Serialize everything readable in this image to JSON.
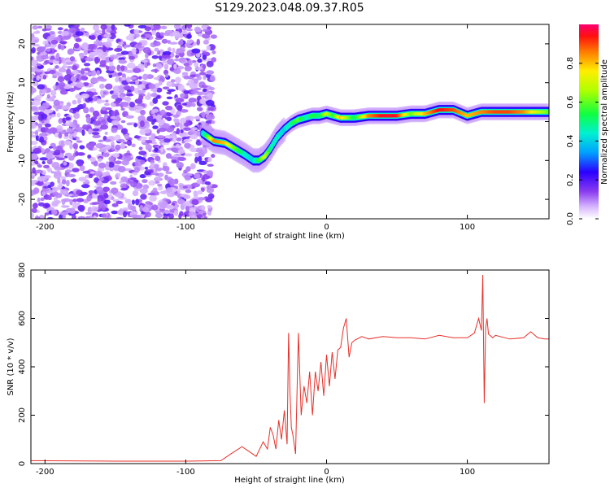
{
  "title": "S129.2023.048.09.37.R05",
  "chart_data": [
    {
      "type": "heatmap",
      "xlabel": "Height of straight line (km)",
      "ylabel": "Frequency (Hz)",
      "xlim": [
        -210,
        158
      ],
      "ylim": [
        -25,
        25
      ],
      "xticks": [
        -200,
        -100,
        0,
        100
      ],
      "yticks": [
        -20,
        -10,
        0,
        10,
        20
      ],
      "colorbar": {
        "label": "Normalized spectral amplitude",
        "range": [
          0,
          1
        ],
        "ticks": [
          "0.0",
          "0.2",
          "0.4",
          "0.6",
          "0.8"
        ],
        "tick_values": [
          0,
          0.2,
          0.4,
          0.6,
          0.8
        ]
      },
      "noise_region": {
        "x": [
          -210,
          -80
        ],
        "y": [
          -25,
          25
        ]
      },
      "ridge": {
        "x": [
          -88,
          -80,
          -72,
          -65,
          -58,
          -52,
          -48,
          -44,
          -40,
          -35,
          -30,
          -25,
          -20,
          -15,
          -10,
          -5,
          0,
          5,
          10,
          20,
          30,
          40,
          50,
          60,
          70,
          80,
          90,
          100,
          110,
          120,
          130,
          140,
          150,
          158
        ],
        "y": [
          -3,
          -5,
          -5.5,
          -7,
          -8.5,
          -10,
          -10,
          -9,
          -7,
          -4,
          -2,
          -0.5,
          0.5,
          1,
          1.5,
          1.5,
          2,
          1.5,
          1,
          1,
          1.5,
          1.5,
          1.5,
          2,
          2,
          3,
          3,
          1.5,
          2.5,
          2.5,
          2.5,
          2.5,
          2.5,
          2.5
        ],
        "amp": [
          0.4,
          0.85,
          0.8,
          0.6,
          0.45,
          0.4,
          0.55,
          0.7,
          0.5,
          0.45,
          0.4,
          0.5,
          0.6,
          0.45,
          0.55,
          0.5,
          0.7,
          0.55,
          0.8,
          0.5,
          0.85,
          0.95,
          0.95,
          0.6,
          0.8,
          0.95,
          0.9,
          0.8,
          0.85,
          0.9,
          0.9,
          0.85,
          0.7,
          0.6
        ]
      }
    },
    {
      "type": "line",
      "xlabel": "Height of straight line (km)",
      "ylabel": "SNR (10 * v/v)",
      "xlim": [
        -210,
        158
      ],
      "ylim": [
        0,
        800
      ],
      "xticks": [
        -200,
        -100,
        0,
        100
      ],
      "yticks": [
        0,
        200,
        400,
        600,
        800
      ],
      "series": [
        {
          "color": "#e8302a",
          "x": [
            -210,
            -150,
            -100,
            -75,
            -68,
            -60,
            -50,
            -45,
            -42,
            -40,
            -38,
            -36,
            -34,
            -32,
            -30,
            -28,
            -27,
            -26,
            -25,
            -24,
            -22,
            -20,
            -18,
            -16,
            -14,
            -12,
            -10,
            -8,
            -6,
            -4,
            -2,
            0,
            2,
            4,
            6,
            8,
            10,
            12,
            14,
            16,
            18,
            20,
            25,
            30,
            40,
            50,
            60,
            70,
            80,
            90,
            100,
            105,
            108,
            110,
            111,
            112,
            113,
            114,
            115,
            118,
            120,
            130,
            140,
            145,
            150,
            155,
            158
          ],
          "y": [
            12,
            10,
            10,
            12,
            40,
            70,
            30,
            90,
            60,
            150,
            120,
            60,
            180,
            100,
            220,
            80,
            540,
            300,
            150,
            120,
            40,
            540,
            200,
            320,
            250,
            380,
            200,
            380,
            300,
            420,
            280,
            450,
            320,
            460,
            350,
            470,
            480,
            560,
            600,
            440,
            500,
            510,
            525,
            515,
            525,
            520,
            520,
            515,
            530,
            520,
            520,
            540,
            600,
            550,
            780,
            250,
            560,
            600,
            535,
            520,
            530,
            515,
            520,
            545,
            520,
            515,
            515
          ]
        }
      ]
    }
  ]
}
